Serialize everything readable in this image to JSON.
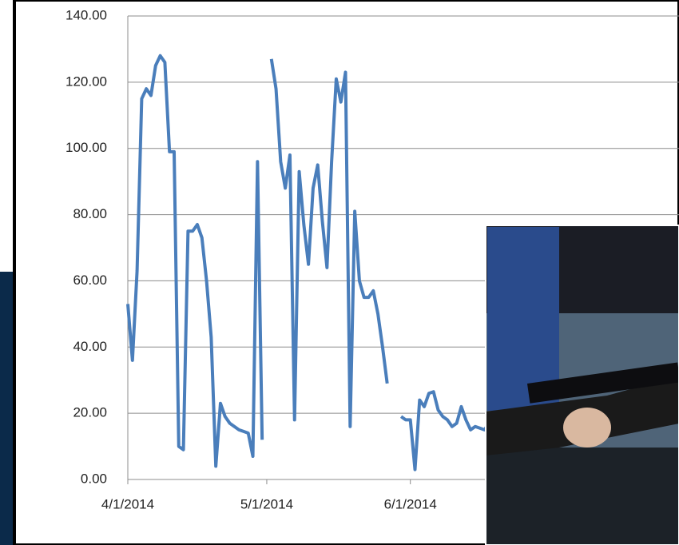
{
  "chart_data": {
    "type": "line",
    "x": [
      "2014-04-01",
      "2014-04-02",
      "2014-04-03",
      "2014-04-04",
      "2014-04-05",
      "2014-04-06",
      "2014-04-07",
      "2014-04-08",
      "2014-04-09",
      "2014-04-10",
      "2014-04-11",
      "2014-04-12",
      "2014-04-13",
      "2014-04-14",
      "2014-04-15",
      "2014-04-16",
      "2014-04-17",
      "2014-04-18",
      "2014-04-19",
      "2014-04-20",
      "2014-04-21",
      "2014-04-22",
      "2014-04-23",
      "2014-04-24",
      "2014-04-25",
      "2014-04-26",
      "2014-04-27",
      "2014-04-28",
      "2014-04-29",
      "2014-04-30",
      "2014-05-01",
      "2014-05-02",
      "2014-05-03",
      "2014-05-04",
      "2014-05-05",
      "2014-05-06",
      "2014-05-07",
      "2014-05-08",
      "2014-05-09",
      "2014-05-10",
      "2014-05-11",
      "2014-05-12",
      "2014-05-13",
      "2014-05-14",
      "2014-05-15",
      "2014-05-16",
      "2014-05-17",
      "2014-05-18",
      "2014-05-19",
      "2014-05-20",
      "2014-05-21",
      "2014-05-22",
      "2014-05-23",
      "2014-05-24",
      "2014-05-25",
      "2014-05-26",
      "2014-05-27",
      "2014-05-28",
      "2014-05-29",
      "2014-05-30",
      "2014-05-31",
      "2014-06-01",
      "2014-06-02",
      "2014-06-03",
      "2014-06-04",
      "2014-06-05",
      "2014-06-06",
      "2014-06-07",
      "2014-06-08",
      "2014-06-09",
      "2014-06-10",
      "2014-06-11",
      "2014-06-12",
      "2014-06-13",
      "2014-06-14",
      "2014-06-15",
      "2014-06-16",
      "2014-06-17",
      "2014-06-18"
    ],
    "series": [
      {
        "color": "#4a7ebb",
        "values": [
          53,
          36,
          63,
          115,
          118,
          116,
          125,
          128,
          126,
          99,
          99,
          10,
          9,
          75,
          75,
          77,
          73,
          60,
          43,
          4,
          23,
          19,
          17,
          16,
          15,
          14.5,
          14,
          7,
          96,
          12,
          null,
          127,
          118,
          96,
          88,
          98,
          18,
          93,
          77,
          65,
          88,
          95,
          78,
          64,
          96,
          121,
          114,
          123,
          16,
          81,
          60,
          55,
          55,
          57,
          50,
          40,
          29,
          null,
          null,
          19,
          18,
          18,
          3,
          24,
          22,
          26,
          26.5,
          21,
          19,
          18,
          16,
          17,
          22,
          18,
          15,
          16,
          15.5,
          15,
          17
        ]
      }
    ],
    "xlim": [
      "2014-04-01",
      "2014-07-29"
    ],
    "xticks": [
      {
        "value": "2014-04-01",
        "label": "4/1/2014"
      },
      {
        "value": "2014-05-01",
        "label": "5/1/2014"
      },
      {
        "value": "2014-06-01",
        "label": "6/1/2014"
      }
    ],
    "ylim": [
      0,
      140
    ],
    "yticks": [
      {
        "value": 0,
        "label": "0.00"
      },
      {
        "value": 20,
        "label": "20.00"
      },
      {
        "value": 40,
        "label": "40.00"
      },
      {
        "value": 60,
        "label": "60.00"
      },
      {
        "value": 80,
        "label": "80.00"
      },
      {
        "value": 100,
        "label": "100.00"
      },
      {
        "value": 120,
        "label": "120.00"
      },
      {
        "value": 140,
        "label": "140.00"
      }
    ],
    "grid": true
  }
}
